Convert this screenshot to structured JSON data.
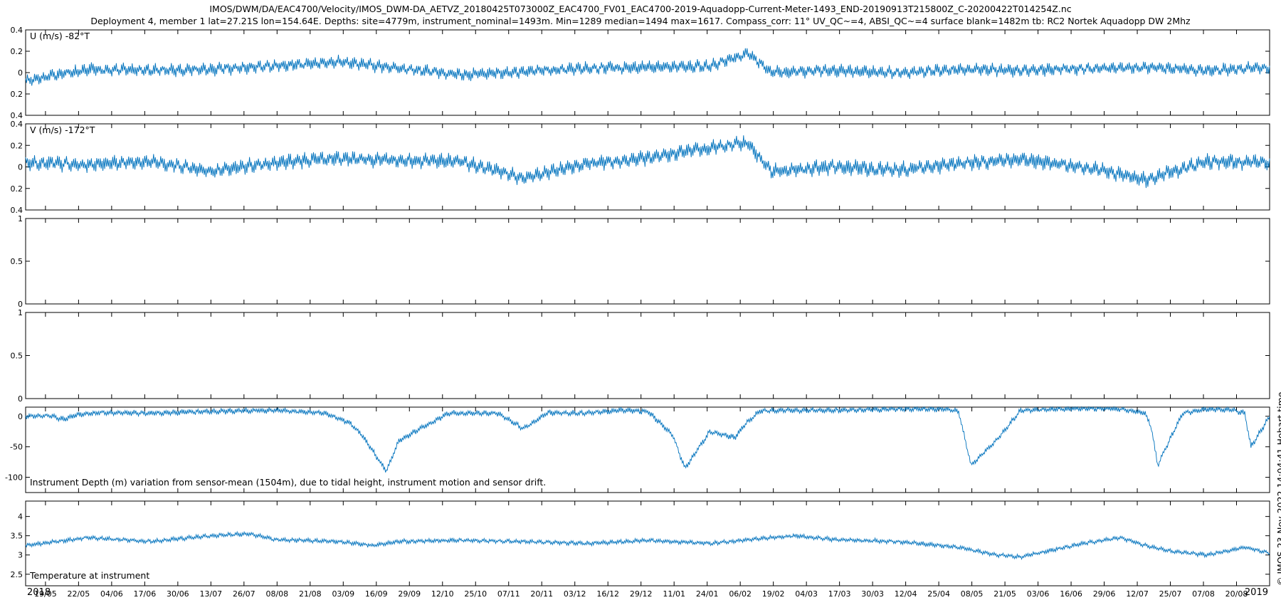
{
  "figure": {
    "title_line1": "IMOS/DWM/DA/EAC4700/Velocity/IMOS_DWM-DA_AETVZ_20180425T073000Z_EAC4700_FV01_EAC4700-2019-Aquadopp-Current-Meter-1493_END-20190913T215800Z_C-20200422T014254Z.nc",
    "title_line2": "Deployment 4, member 1 lat=27.21S lon=154.64E. Depths: site=4779m, instrument_nominal=1493m. Min=1289 median=1494 max=1617. Compass_corr: 11° UV_QC~=4, ABSI_QC~=4 surface blank=1482m tb: RC2 Nortek Aquadopp DW 2Mhz",
    "credit": "© IMOS 23-Nov-2022 14:04:41 Hobart time",
    "line_color": "#0072bd"
  },
  "x_axis": {
    "tick_labels": [
      "19/05",
      "22/05",
      "04/06",
      "17/06",
      "30/06",
      "13/07",
      "26/07",
      "08/08",
      "21/08",
      "03/09",
      "16/09",
      "29/09",
      "12/10",
      "25/10",
      "07/11",
      "20/11",
      "03/12",
      "16/12",
      "29/12",
      "11/01",
      "24/01",
      "06/02",
      "19/02",
      "04/03",
      "17/03",
      "30/03",
      "12/04",
      "25/04",
      "08/05",
      "21/05",
      "03/06",
      "16/06",
      "29/06",
      "12/07",
      "25/07",
      "07/08",
      "20/08"
    ],
    "year_left": "2018",
    "year_right": "2019"
  },
  "chart_data": [
    {
      "type": "line",
      "label": "U (m/s) -82°T",
      "ylim": [
        -0.4,
        0.4
      ],
      "yticks": [
        -0.4,
        -0.2,
        0,
        0.2,
        0.4
      ],
      "ytick_labels": [
        "0.4",
        "0.2",
        "0",
        "0.2",
        "0.4"
      ],
      "x_fraction": [
        0,
        0.05,
        0.1,
        0.15,
        0.2,
        0.25,
        0.3,
        0.35,
        0.4,
        0.45,
        0.5,
        0.55,
        0.58,
        0.6,
        0.65,
        0.7,
        0.75,
        0.8,
        0.85,
        0.9,
        0.95,
        1
      ],
      "values": [
        -0.08,
        0.03,
        0.02,
        0.03,
        0.06,
        0.1,
        0.04,
        -0.02,
        0.01,
        0.04,
        0.05,
        0.06,
        0.18,
        0.0,
        0.02,
        0.0,
        0.03,
        0.02,
        0.04,
        0.05,
        0.02,
        0.05
      ],
      "noise": 0.05
    },
    {
      "type": "line",
      "label": "V (m/s) -172°T",
      "ylim": [
        -0.4,
        0.4
      ],
      "yticks": [
        -0.4,
        -0.2,
        0,
        0.2,
        0.4
      ],
      "ytick_labels": [
        "0.4",
        "0.2",
        "0",
        "0.2",
        "0.4"
      ],
      "x_fraction": [
        0,
        0.05,
        0.1,
        0.15,
        0.2,
        0.25,
        0.3,
        0.35,
        0.4,
        0.45,
        0.5,
        0.55,
        0.58,
        0.6,
        0.65,
        0.7,
        0.75,
        0.8,
        0.85,
        0.9,
        0.95,
        1
      ],
      "values": [
        0.04,
        0.02,
        0.05,
        -0.04,
        0.04,
        0.08,
        0.06,
        0.05,
        -0.1,
        0.03,
        0.08,
        0.18,
        0.22,
        -0.04,
        0.0,
        -0.03,
        0.03,
        0.07,
        0.0,
        -0.12,
        0.05,
        0.04
      ],
      "noise": 0.06
    },
    {
      "type": "line",
      "label": "",
      "ylim": [
        0,
        1
      ],
      "yticks": [
        0,
        0.5,
        1
      ],
      "ytick_labels": [
        "0",
        "0.5",
        "1"
      ],
      "x_fraction": [],
      "values": []
    },
    {
      "type": "line",
      "label": "",
      "ylim": [
        0,
        1
      ],
      "yticks": [
        0,
        0.5,
        1
      ],
      "ytick_labels": [
        "0",
        "0.5",
        "1"
      ],
      "x_fraction": [],
      "values": []
    },
    {
      "type": "line",
      "label": "Instrument Depth (m) variation from sensor-mean (1504m), due to tidal height, instrument motion and sensor drift.",
      "ylim": [
        -125,
        15
      ],
      "yticks": [
        -100,
        -50,
        0
      ],
      "ytick_labels": [
        "-100",
        "-50",
        "0"
      ],
      "x_fraction": [
        0,
        0.02,
        0.03,
        0.04,
        0.06,
        0.1,
        0.15,
        0.2,
        0.24,
        0.26,
        0.27,
        0.29,
        0.3,
        0.34,
        0.38,
        0.4,
        0.42,
        0.45,
        0.48,
        0.5,
        0.52,
        0.53,
        0.54,
        0.55,
        0.57,
        0.58,
        0.59,
        0.6,
        0.65,
        0.7,
        0.74,
        0.75,
        0.76,
        0.78,
        0.8,
        0.85,
        0.88,
        0.9,
        0.905,
        0.91,
        0.93,
        0.95,
        0.97,
        0.98,
        0.985,
        1
      ],
      "values": [
        0,
        1,
        -5,
        2,
        6,
        5,
        8,
        10,
        5,
        -10,
        -30,
        -90,
        -40,
        5,
        5,
        -20,
        6,
        5,
        10,
        8,
        -30,
        -85,
        -55,
        -25,
        -35,
        -10,
        8,
        10,
        10,
        12,
        12,
        8,
        -80,
        -40,
        10,
        13,
        12,
        5,
        -20,
        -80,
        5,
        12,
        10,
        5,
        -50,
        0
      ],
      "noise": 4
    },
    {
      "type": "line",
      "label": "Temperature at instrument",
      "ylim": [
        2.2,
        4.4
      ],
      "yticks": [
        2.5,
        3,
        3.5,
        4
      ],
      "ytick_labels": [
        "2.5",
        "3",
        "3.5",
        "4"
      ],
      "x_fraction": [
        0,
        0.05,
        0.1,
        0.15,
        0.18,
        0.2,
        0.25,
        0.28,
        0.3,
        0.35,
        0.4,
        0.45,
        0.5,
        0.55,
        0.6,
        0.62,
        0.65,
        0.7,
        0.75,
        0.78,
        0.8,
        0.85,
        0.88,
        0.9,
        0.92,
        0.95,
        0.98,
        1
      ],
      "values": [
        3.25,
        3.45,
        3.35,
        3.5,
        3.55,
        3.4,
        3.35,
        3.25,
        3.35,
        3.38,
        3.35,
        3.3,
        3.38,
        3.3,
        3.45,
        3.5,
        3.4,
        3.35,
        3.2,
        3.0,
        2.95,
        3.3,
        3.45,
        3.25,
        3.1,
        3.0,
        3.2,
        3.05
      ],
      "noise": 0.05
    }
  ]
}
